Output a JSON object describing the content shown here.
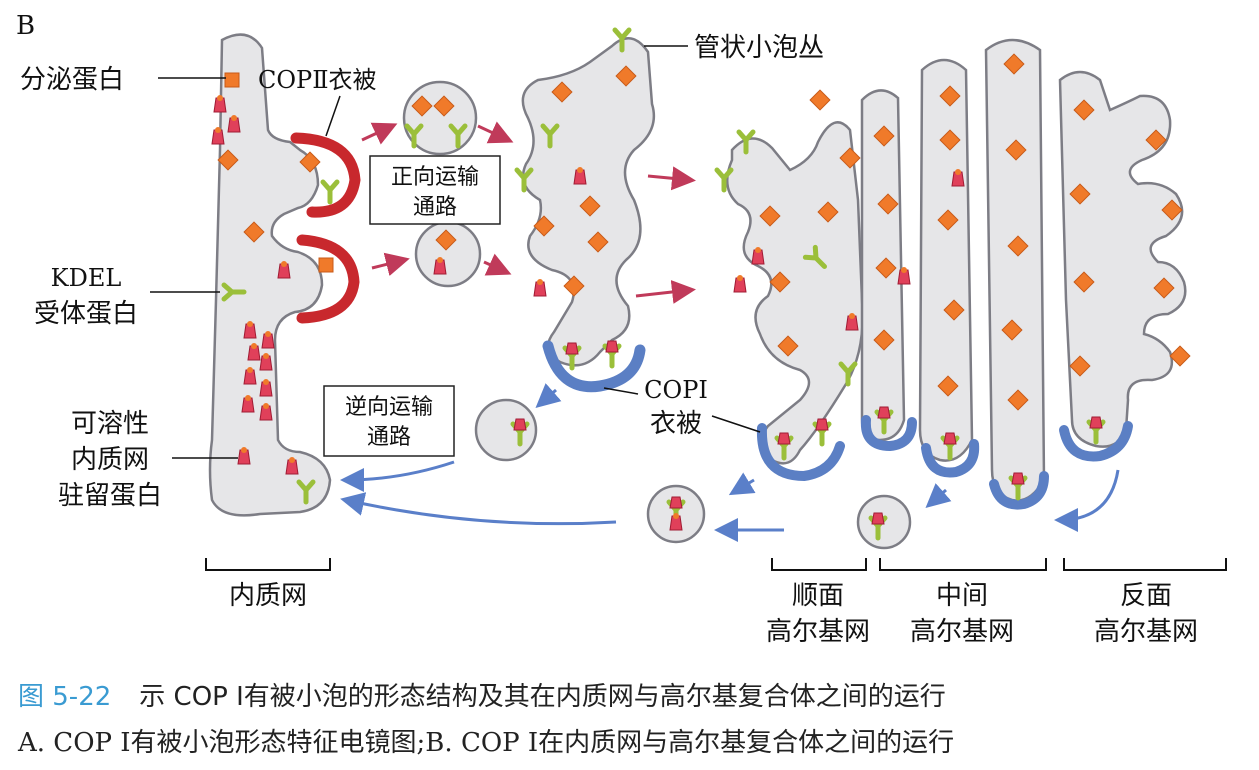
{
  "panel_letter": "B",
  "labels": {
    "secretory_protein": "分泌蛋白",
    "copii_coat": "COPⅡ衣被",
    "tubular_cluster": "管状小泡丛",
    "anterograde_line1": "正向运输",
    "anterograde_line2": "通路",
    "kdel_line1": "KDEL",
    "kdel_line2": "受体蛋白",
    "copi_line1": "COPⅠ",
    "copi_line2": "衣被",
    "retrograde_line1": "逆向运输",
    "retrograde_line2": "通路",
    "soluble_line1": "可溶性",
    "soluble_line2": "内质网",
    "soluble_line3": "驻留蛋白"
  },
  "regions": {
    "er": "内质网",
    "cis_line1": "顺面",
    "cis_line2": "高尔基网",
    "medial_line1": "中间",
    "medial_line2": "高尔基网",
    "trans_line1": "反面",
    "trans_line2": "高尔基网"
  },
  "caption": {
    "figure_number": "图 5-22",
    "title": "示 COP Ⅰ有被小泡的形态结构及其在内质网与高尔基复合体之间的运行",
    "subtitle": "A. COP Ⅰ有被小泡形态特征电镜图;B. COP Ⅰ在内质网与高尔基复合体之间的运行"
  },
  "colors": {
    "membrane_fill": "#e6e6e8",
    "membrane_stroke": "#7d7d85",
    "cargo": "#f07a2a",
    "copii": "#c8282d",
    "copi": "#5b7fc4",
    "receptor": "#9bbf3a",
    "resident": "#e0405a",
    "arrow_forward": "#c03a5a",
    "arrow_back": "#5a7fc9",
    "caption_accent": "#3a9bd2"
  }
}
